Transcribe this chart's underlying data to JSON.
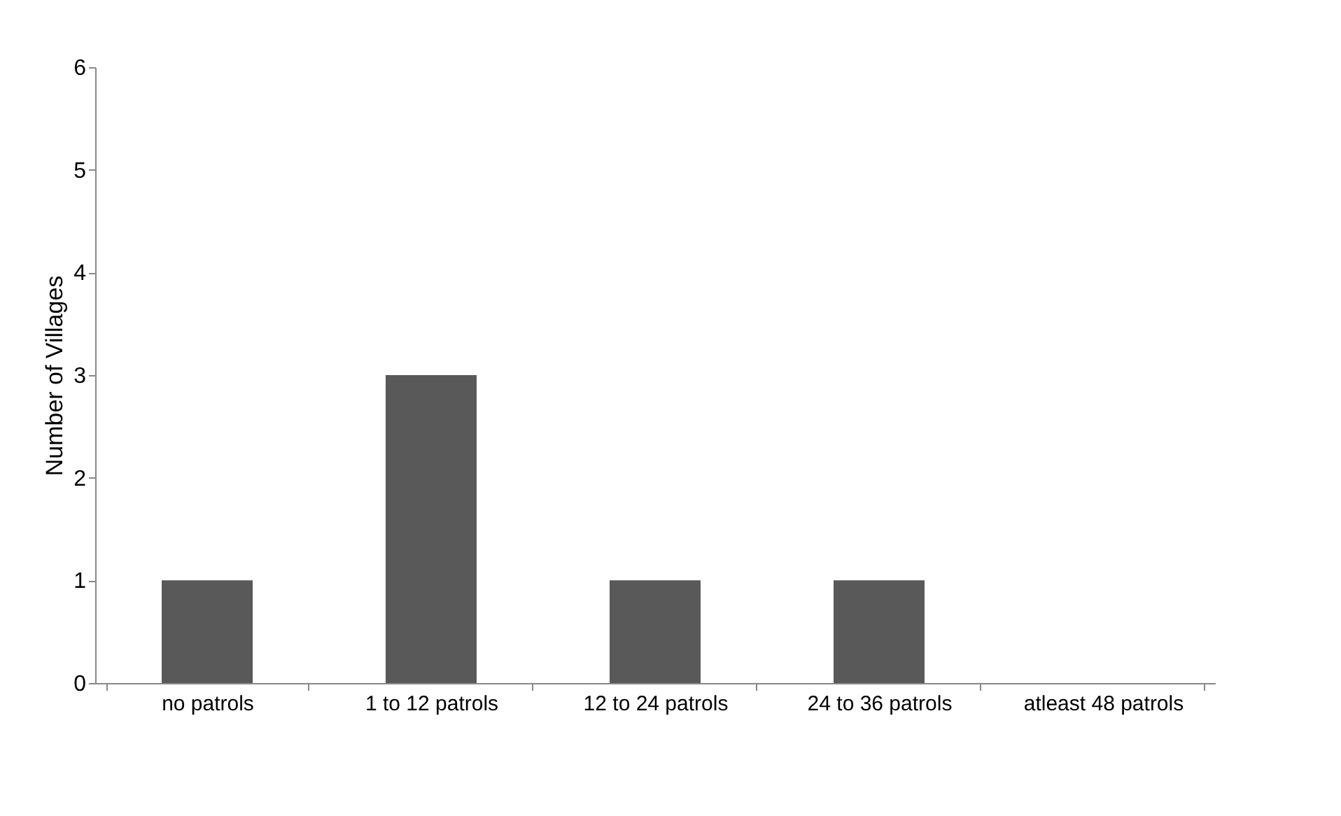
{
  "chart_data": {
    "type": "bar",
    "ylabel": "Number of Villages",
    "categories": [
      "no patrols",
      "1 to 12 patrols",
      "12 to 24 patrols",
      "24 to 36 patrols",
      "atleast 48 patrols"
    ],
    "values": [
      1,
      3,
      1,
      1,
      0
    ],
    "color": "#595959",
    "ylim": [
      0,
      6
    ],
    "yticks": [
      0,
      1,
      2,
      3,
      4,
      5,
      6
    ],
    "grid": false
  }
}
